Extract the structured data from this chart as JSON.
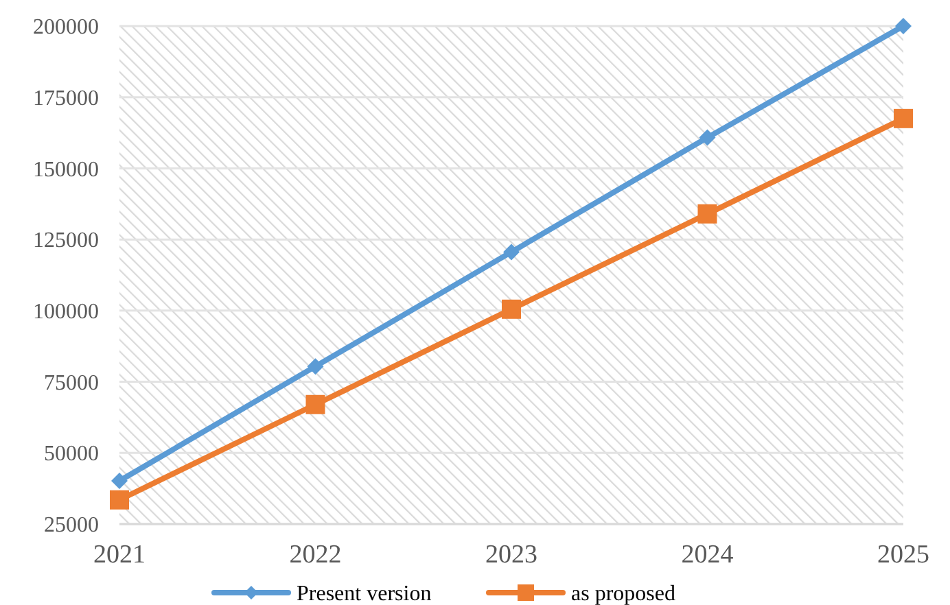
{
  "chart_data": {
    "type": "line",
    "x": [
      2021,
      2022,
      2023,
      2024,
      2025
    ],
    "xlim": [
      2021,
      2025
    ],
    "xticks": [
      2021,
      2022,
      2023,
      2024,
      2025
    ],
    "ylim": [
      25000,
      200000
    ],
    "yticks": [
      25000,
      50000,
      75000,
      100000,
      125000,
      150000,
      175000,
      200000
    ],
    "grid": "y",
    "legend": "bottom",
    "series": [
      {
        "name": "Present version",
        "color": "#5b9bd5",
        "marker": "diamond",
        "values": [
          40200,
          80400,
          120600,
          160800,
          200000
        ]
      },
      {
        "name": "as proposed",
        "color": "#ed7d31",
        "marker": "square",
        "values": [
          33500,
          67000,
          100500,
          134000,
          167500
        ]
      }
    ]
  }
}
